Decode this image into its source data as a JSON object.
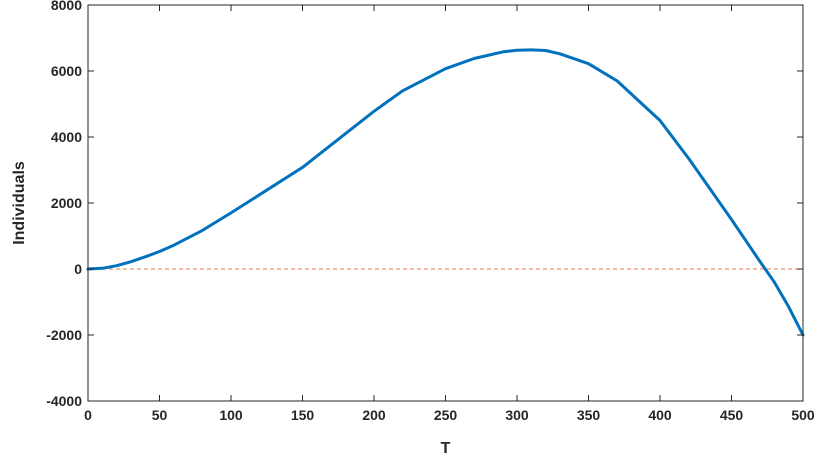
{
  "chart_data": {
    "type": "line",
    "title": "",
    "xlabel": "T",
    "ylabel": "Individuals",
    "xlim": [
      0,
      500
    ],
    "ylim": [
      -4000,
      8000
    ],
    "xticks": [
      0,
      50,
      100,
      150,
      200,
      250,
      300,
      350,
      400,
      450,
      500
    ],
    "yticks": [
      -4000,
      -2000,
      0,
      2000,
      4000,
      6000,
      8000
    ],
    "xtick_labels": [
      "0",
      "50",
      "100",
      "150",
      "200",
      "250",
      "300",
      "350",
      "400",
      "450",
      "500"
    ],
    "ytick_labels": [
      "-4000",
      "-2000",
      "0",
      "2000",
      "4000",
      "6000",
      "8000"
    ],
    "grid": false,
    "series": [
      {
        "color": "#0072BD",
        "x": [
          0,
          10,
          20,
          30,
          40,
          50,
          60,
          80,
          100,
          120,
          150,
          180,
          200,
          220,
          250,
          270,
          290,
          300,
          310,
          320,
          330,
          350,
          370,
          400,
          420,
          450,
          470,
          480,
          490,
          500
        ],
        "y": [
          0,
          20,
          100,
          220,
          370,
          530,
          720,
          1170,
          1700,
          2250,
          3080,
          4100,
          4780,
          5400,
          6070,
          6380,
          6580,
          6630,
          6640,
          6620,
          6520,
          6220,
          5700,
          4500,
          3350,
          1500,
          220,
          -400,
          -1150,
          -2000
        ]
      },
      {
        "color": "#D95319",
        "style": "dashed",
        "x": [
          0,
          500
        ],
        "y": [
          0,
          0
        ]
      }
    ]
  }
}
